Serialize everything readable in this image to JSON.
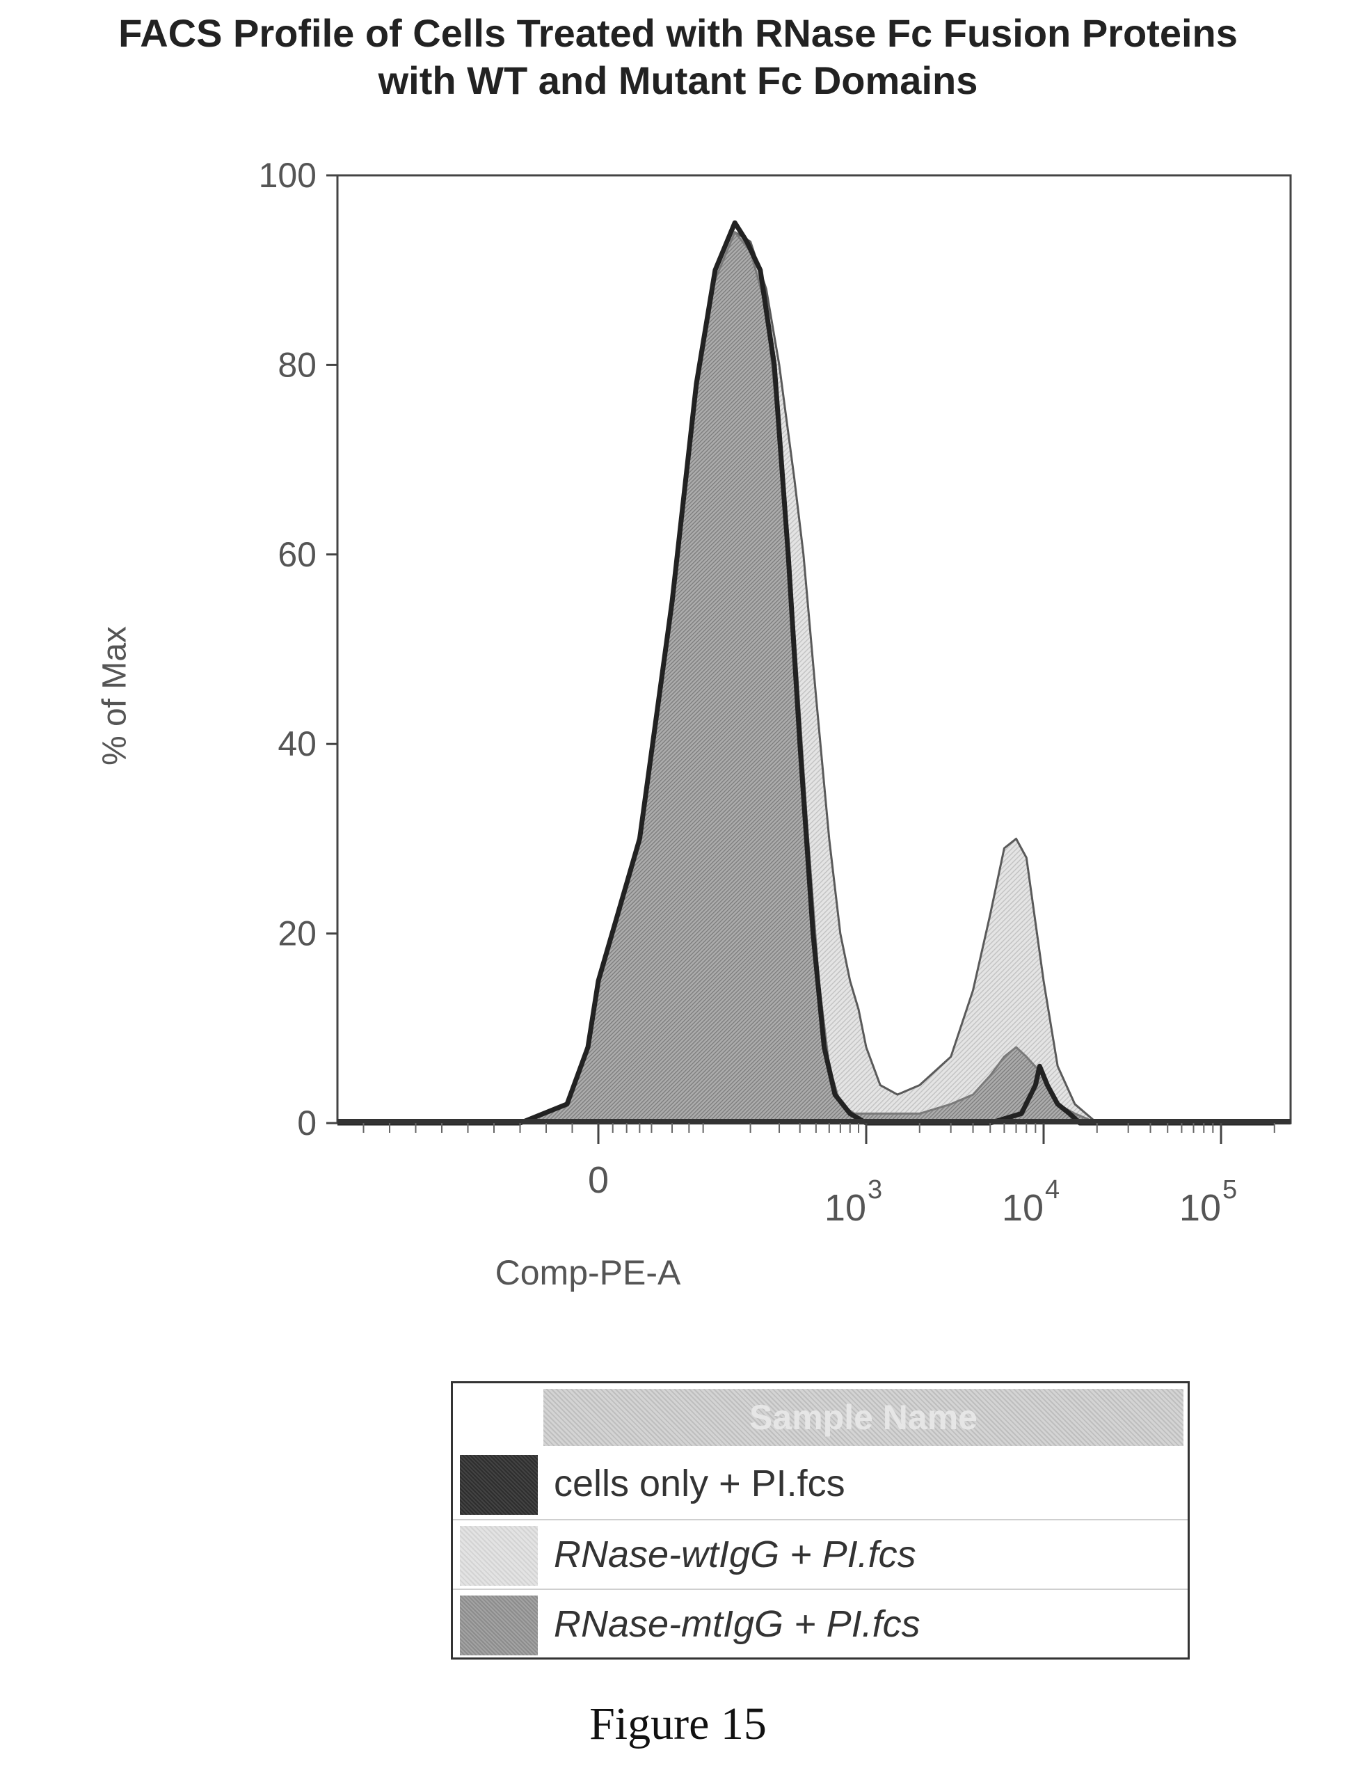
{
  "chart_data": {
    "type": "area",
    "title_lines": [
      "FACS Profile of Cells Treated with RNase Fc Fusion Proteins",
      "with WT and Mutant Fc Domains"
    ],
    "xlabel": "Comp-PE-A",
    "ylabel": "% of Max",
    "x_scale": "biexponential (log above 10^2)",
    "y_ticks": [
      0,
      20,
      40,
      60,
      80,
      100
    ],
    "ylim": [
      0,
      100
    ],
    "x_ticks": [
      {
        "label": "0",
        "exp": "",
        "x": 0
      },
      {
        "label": "10",
        "exp": "3",
        "x": 1000
      },
      {
        "label": "10",
        "exp": "4",
        "x": 10000
      },
      {
        "label": "10",
        "exp": "5",
        "x": 100000
      }
    ],
    "xlim": [
      -500,
      200000
    ],
    "series": [
      {
        "name": "cells only + PI.fcs",
        "color": "#2e2e2e",
        "points": [
          [
            -500,
            0
          ],
          [
            -150,
            0
          ],
          [
            -60,
            2
          ],
          [
            -20,
            8
          ],
          [
            0,
            15
          ],
          [
            30,
            30
          ],
          [
            60,
            55
          ],
          [
            90,
            78
          ],
          [
            120,
            90
          ],
          [
            160,
            95
          ],
          [
            190,
            93
          ],
          [
            230,
            90
          ],
          [
            280,
            80
          ],
          [
            340,
            60
          ],
          [
            400,
            40
          ],
          [
            480,
            20
          ],
          [
            560,
            8
          ],
          [
            650,
            3
          ],
          [
            800,
            1
          ],
          [
            1000,
            0
          ],
          [
            2500,
            0
          ],
          [
            5000,
            0
          ],
          [
            7500,
            1
          ],
          [
            9000,
            4
          ],
          [
            9500,
            6
          ],
          [
            10500,
            4
          ],
          [
            12000,
            2
          ],
          [
            14000,
            1
          ],
          [
            16000,
            0
          ],
          [
            200000,
            0
          ]
        ]
      },
      {
        "name": "RNase-wtIgG + PI.fcs",
        "color": "#e3e3e3",
        "points": [
          [
            -500,
            0
          ],
          [
            -150,
            0
          ],
          [
            -60,
            2
          ],
          [
            -20,
            7
          ],
          [
            0,
            14
          ],
          [
            30,
            28
          ],
          [
            60,
            52
          ],
          [
            90,
            75
          ],
          [
            120,
            88
          ],
          [
            160,
            94
          ],
          [
            200,
            93
          ],
          [
            250,
            88
          ],
          [
            300,
            80
          ],
          [
            370,
            68
          ],
          [
            420,
            60
          ],
          [
            500,
            45
          ],
          [
            600,
            30
          ],
          [
            700,
            20
          ],
          [
            800,
            15
          ],
          [
            900,
            12
          ],
          [
            1000,
            8
          ],
          [
            1200,
            4
          ],
          [
            1500,
            3
          ],
          [
            2000,
            4
          ],
          [
            3000,
            7
          ],
          [
            4000,
            14
          ],
          [
            5000,
            22
          ],
          [
            6000,
            29
          ],
          [
            7000,
            30
          ],
          [
            8000,
            28
          ],
          [
            10000,
            15
          ],
          [
            12000,
            6
          ],
          [
            15000,
            2
          ],
          [
            20000,
            0
          ],
          [
            200000,
            0
          ]
        ]
      },
      {
        "name": "RNase-mtIgG + PI.fcs",
        "color": "#a3a3a3",
        "points": [
          [
            -500,
            0
          ],
          [
            -150,
            0
          ],
          [
            -60,
            2
          ],
          [
            -20,
            8
          ],
          [
            0,
            15
          ],
          [
            30,
            30
          ],
          [
            60,
            54
          ],
          [
            90,
            77
          ],
          [
            120,
            89
          ],
          [
            160,
            94
          ],
          [
            200,
            92
          ],
          [
            250,
            86
          ],
          [
            310,
            70
          ],
          [
            370,
            52
          ],
          [
            440,
            32
          ],
          [
            520,
            15
          ],
          [
            600,
            6
          ],
          [
            700,
            2
          ],
          [
            850,
            1
          ],
          [
            1000,
            1
          ],
          [
            2000,
            1
          ],
          [
            3000,
            2
          ],
          [
            4000,
            3
          ],
          [
            5000,
            5
          ],
          [
            6000,
            7
          ],
          [
            7000,
            8
          ],
          [
            8000,
            7
          ],
          [
            10000,
            5
          ],
          [
            12000,
            2
          ],
          [
            15000,
            1
          ],
          [
            20000,
            0
          ],
          [
            200000,
            0
          ]
        ]
      }
    ]
  },
  "legend": {
    "header": "Sample Name",
    "items": [
      {
        "label": "cells only + PI.fcs"
      },
      {
        "label": "RNase-wtIgG + PI.fcs"
      },
      {
        "label": "RNase-mtIgG + PI.fcs"
      }
    ]
  },
  "caption": "Figure 15"
}
